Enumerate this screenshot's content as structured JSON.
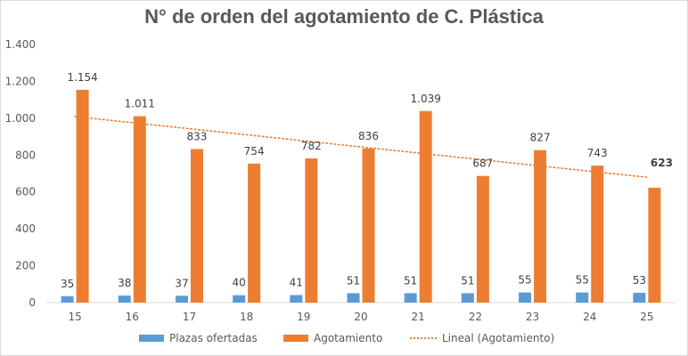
{
  "chart_data": {
    "type": "bar",
    "title": "N° de orden del agotamiento de C. Plástica",
    "categories": [
      "15",
      "16",
      "17",
      "18",
      "19",
      "20",
      "21",
      "22",
      "23",
      "24",
      "25"
    ],
    "series": [
      {
        "name": "Plazas ofertadas",
        "color": "#5B9BD5",
        "values": [
          35,
          38,
          37,
          40,
          41,
          51,
          51,
          51,
          55,
          55,
          53
        ],
        "labels": [
          "35",
          "38",
          "37",
          "40",
          "41",
          "51",
          "51",
          "51",
          "55",
          "55",
          "53"
        ]
      },
      {
        "name": "Agotamiento",
        "color": "#ED7D31",
        "values": [
          1154,
          1011,
          833,
          754,
          782,
          836,
          1039,
          687,
          827,
          743,
          623
        ],
        "labels": [
          "1.154",
          "1.011",
          "833",
          "754",
          "782",
          "836",
          "1.039",
          "687",
          "827",
          "743",
          "623"
        ],
        "bold_last_label": true
      }
    ],
    "trendline": {
      "name": "Lineal (Agotamiento)",
      "type": "linear",
      "of": "Agotamiento",
      "color": "#ED7D31"
    },
    "ylim": [
      0,
      1400
    ],
    "yticks": [
      0,
      200,
      400,
      600,
      800,
      1000,
      1200,
      1400
    ],
    "ytick_labels": [
      "0",
      "200",
      "400",
      "600",
      "800",
      "1.000",
      "1.200",
      "1.400"
    ],
    "grid": false,
    "legend_position": "bottom"
  }
}
